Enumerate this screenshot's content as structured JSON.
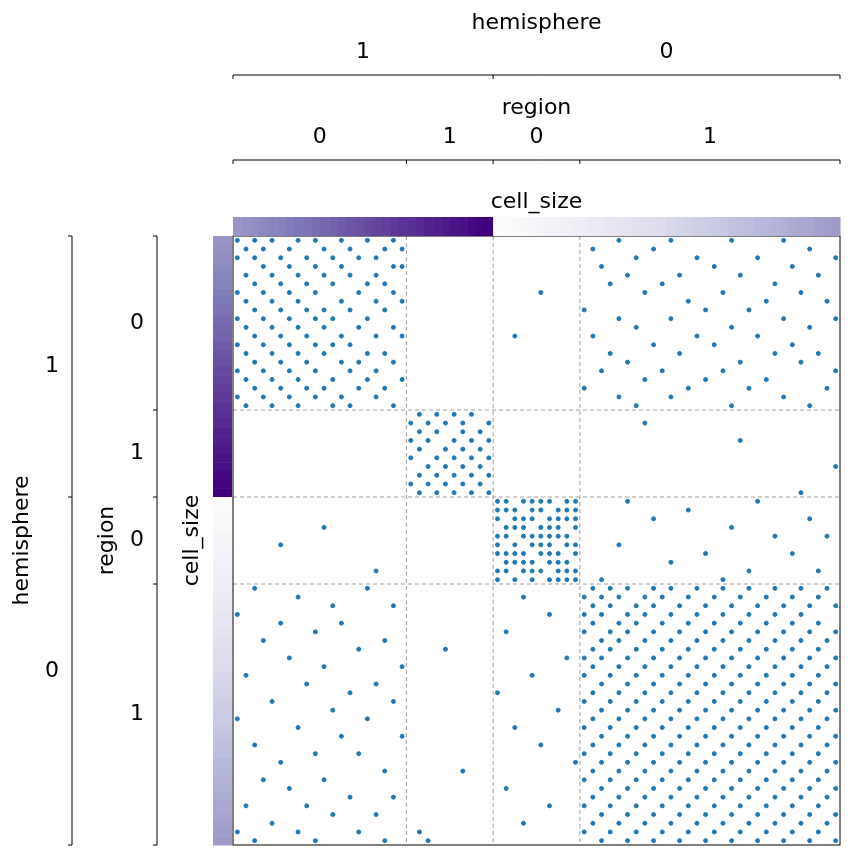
{
  "chart_data": {
    "type": "scatter",
    "marker": "circle",
    "color": "#1f77b4",
    "tick_labels": false,
    "grid": false,
    "xlim": [
      0,
      70
    ],
    "ylim": [
      0,
      70
    ],
    "levels": [
      {
        "name": "hemisphere",
        "groups": [
          {
            "label": "1",
            "count": 30
          },
          {
            "label": "0",
            "count": 40
          }
        ]
      },
      {
        "name": "region",
        "groups": [
          {
            "label": "0",
            "count": 20
          },
          {
            "label": "1",
            "count": 10
          },
          {
            "label": "0",
            "count": 10
          },
          {
            "label": "1",
            "count": 30
          }
        ]
      }
    ],
    "color_bar": {
      "name": "cell_size",
      "lim": [
        0,
        1
      ],
      "values": [
        0.52,
        0.54,
        0.55,
        0.57,
        0.59,
        0.6,
        0.62,
        0.64,
        0.65,
        0.67,
        0.69,
        0.7,
        0.72,
        0.74,
        0.75,
        0.77,
        0.79,
        0.8,
        0.82,
        0.84,
        0.85,
        0.87,
        0.89,
        0.9,
        0.92,
        0.94,
        0.95,
        0.97,
        0.99,
        1.0,
        0.0,
        0.01,
        0.03,
        0.04,
        0.05,
        0.06,
        0.08,
        0.09,
        0.1,
        0.12,
        0.13,
        0.14,
        0.15,
        0.17,
        0.18,
        0.19,
        0.21,
        0.22,
        0.23,
        0.24,
        0.26,
        0.27,
        0.28,
        0.3,
        0.31,
        0.32,
        0.33,
        0.35,
        0.36,
        0.37,
        0.39,
        0.4,
        0.41,
        0.42,
        0.44,
        0.45,
        0.46,
        0.48,
        0.49,
        0.5
      ]
    },
    "edges": [
      [
        0,
        2,
        4,
        7,
        9,
        12,
        15,
        18,
        44,
        50,
        57,
        63
      ],
      [
        1,
        3,
        6,
        10,
        13,
        17,
        19,
        41,
        48,
        66
      ],
      [
        0,
        2,
        5,
        8,
        11,
        14,
        16,
        46,
        53,
        60,
        69
      ],
      [
        3,
        6,
        9,
        12,
        18,
        19,
        42,
        55,
        64
      ],
      [
        1,
        4,
        7,
        10,
        13,
        16,
        45,
        51,
        58,
        67
      ],
      [
        2,
        5,
        8,
        11,
        15,
        17,
        43,
        49,
        62
      ],
      [
        0,
        3,
        6,
        9,
        14,
        18,
        35,
        47,
        56,
        65
      ],
      [
        1,
        4,
        7,
        12,
        16,
        19,
        52,
        61,
        68
      ],
      [
        2,
        5,
        8,
        10,
        13,
        17,
        40,
        54,
        59
      ],
      [
        0,
        3,
        6,
        9,
        11,
        15,
        44,
        50,
        63,
        69
      ],
      [
        1,
        4,
        7,
        10,
        14,
        18,
        46,
        57,
        66
      ],
      [
        2,
        5,
        8,
        12,
        16,
        19,
        32,
        41,
        53,
        60
      ],
      [
        0,
        3,
        6,
        9,
        11,
        13,
        48,
        55,
        64
      ],
      [
        1,
        4,
        7,
        10,
        15,
        17,
        43,
        51,
        62,
        67
      ],
      [
        2,
        5,
        8,
        12,
        14,
        18,
        45,
        58,
        65
      ],
      [
        0,
        3,
        6,
        9,
        13,
        16,
        42,
        49,
        56,
        69
      ],
      [
        1,
        4,
        7,
        11,
        15,
        19,
        47,
        54,
        61
      ],
      [
        2,
        5,
        8,
        10,
        14,
        17,
        40,
        52,
        59,
        68
      ],
      [
        0,
        3,
        6,
        9,
        12,
        16,
        44,
        50,
        63
      ],
      [
        1,
        4,
        7,
        11,
        13,
        18,
        46,
        57,
        66
      ],
      [
        21,
        23,
        25,
        27
      ],
      [
        20,
        22,
        24,
        26,
        29,
        47
      ],
      [
        21,
        23,
        26,
        28
      ],
      [
        20,
        22,
        25,
        27,
        29,
        58
      ],
      [
        21,
        24,
        26,
        28
      ],
      [
        20,
        23,
        25,
        27,
        29
      ],
      [
        22,
        24,
        26,
        28,
        69
      ],
      [
        21,
        23,
        25,
        27,
        29
      ],
      [
        20,
        22,
        24,
        26,
        28
      ],
      [
        21,
        23,
        25,
        27,
        29,
        65
      ],
      [
        30,
        31,
        33,
        34,
        35,
        36,
        38,
        39,
        45,
        60
      ],
      [
        30,
        31,
        32,
        34,
        35,
        37,
        38,
        39,
        52
      ],
      [
        30,
        32,
        33,
        34,
        36,
        37,
        38,
        39,
        48,
        66
      ],
      [
        10,
        31,
        32,
        33,
        35,
        36,
        37,
        39,
        57
      ],
      [
        30,
        31,
        33,
        34,
        35,
        36,
        37,
        38,
        62,
        68
      ],
      [
        5,
        30,
        32,
        34,
        35,
        36,
        38,
        39,
        44
      ],
      [
        30,
        31,
        32,
        33,
        35,
        36,
        37,
        39,
        54,
        64
      ],
      [
        31,
        32,
        33,
        34,
        36,
        37,
        38,
        50
      ],
      [
        16,
        30,
        31,
        33,
        34,
        35,
        37,
        38,
        39,
        59,
        67
      ],
      [
        30,
        32,
        34,
        36,
        37,
        38,
        39,
        42,
        56
      ],
      [
        2,
        15,
        41,
        43,
        45,
        48,
        50,
        53,
        56,
        59,
        62,
        65,
        68
      ],
      [
        7,
        33,
        40,
        42,
        44,
        47,
        49,
        52,
        55,
        58,
        61,
        64,
        67
      ],
      [
        11,
        18,
        41,
        43,
        46,
        48,
        51,
        54,
        57,
        60,
        63,
        66,
        69
      ],
      [
        0,
        36,
        40,
        42,
        45,
        47,
        50,
        53,
        56,
        59,
        62,
        65
      ],
      [
        5,
        12,
        41,
        44,
        46,
        49,
        52,
        55,
        58,
        61,
        64,
        67
      ],
      [
        9,
        31,
        40,
        43,
        45,
        48,
        51,
        54,
        57,
        60,
        63,
        66,
        69
      ],
      [
        3,
        17,
        42,
        44,
        47,
        50,
        53,
        56,
        59,
        62,
        65,
        68
      ],
      [
        14,
        24,
        41,
        43,
        46,
        49,
        52,
        55,
        58,
        61,
        64,
        67
      ],
      [
        6,
        38,
        40,
        42,
        45,
        48,
        51,
        54,
        57,
        60,
        63,
        66,
        69
      ],
      [
        10,
        19,
        41,
        44,
        47,
        50,
        53,
        56,
        59,
        62,
        65,
        68
      ],
      [
        1,
        34,
        40,
        43,
        46,
        49,
        52,
        55,
        58,
        61,
        64,
        67
      ],
      [
        8,
        16,
        42,
        45,
        48,
        51,
        54,
        57,
        60,
        63,
        66,
        69
      ],
      [
        13,
        30,
        41,
        44,
        47,
        50,
        53,
        56,
        59,
        62,
        65,
        68
      ],
      [
        4,
        18,
        40,
        43,
        46,
        49,
        52,
        55,
        58,
        61,
        64,
        67
      ],
      [
        11,
        37,
        42,
        45,
        48,
        51,
        54,
        57,
        60,
        63,
        66,
        69
      ],
      [
        0,
        15,
        41,
        44,
        47,
        50,
        53,
        56,
        59,
        62,
        65,
        68
      ],
      [
        7,
        32,
        40,
        43,
        46,
        49,
        52,
        55,
        58,
        61,
        64,
        67
      ],
      [
        12,
        19,
        42,
        45,
        48,
        51,
        54,
        57,
        60,
        63,
        66,
        69
      ],
      [
        2,
        35,
        41,
        44,
        47,
        50,
        53,
        56,
        59,
        62,
        65,
        68
      ],
      [
        9,
        14,
        40,
        43,
        46,
        49,
        52,
        55,
        58,
        61,
        64,
        67
      ],
      [
        5,
        39,
        42,
        45,
        48,
        51,
        54,
        57,
        60,
        63,
        66,
        69
      ],
      [
        17,
        26,
        41,
        44,
        47,
        50,
        53,
        56,
        59,
        62,
        65,
        68
      ],
      [
        3,
        10,
        40,
        43,
        46,
        49,
        52,
        55,
        58,
        61,
        64,
        67
      ],
      [
        6,
        31,
        42,
        45,
        48,
        51,
        54,
        57,
        60,
        63,
        66,
        69
      ],
      [
        13,
        18,
        41,
        44,
        47,
        50,
        53,
        56,
        59,
        62,
        65,
        68
      ],
      [
        1,
        8,
        36,
        40,
        43,
        46,
        49,
        52,
        55,
        58,
        61,
        64,
        67
      ],
      [
        11,
        16,
        42,
        45,
        48,
        51,
        54,
        57,
        60,
        63,
        66,
        69
      ],
      [
        4,
        33,
        41,
        44,
        47,
        50,
        53,
        56,
        59,
        62,
        65,
        68
      ],
      [
        0,
        7,
        14,
        21,
        40,
        43,
        46,
        49,
        52,
        55,
        58,
        61,
        64,
        67
      ],
      [
        2,
        9,
        17,
        22,
        42,
        45,
        48,
        51,
        54,
        57,
        60,
        63,
        66,
        69
      ]
    ]
  }
}
